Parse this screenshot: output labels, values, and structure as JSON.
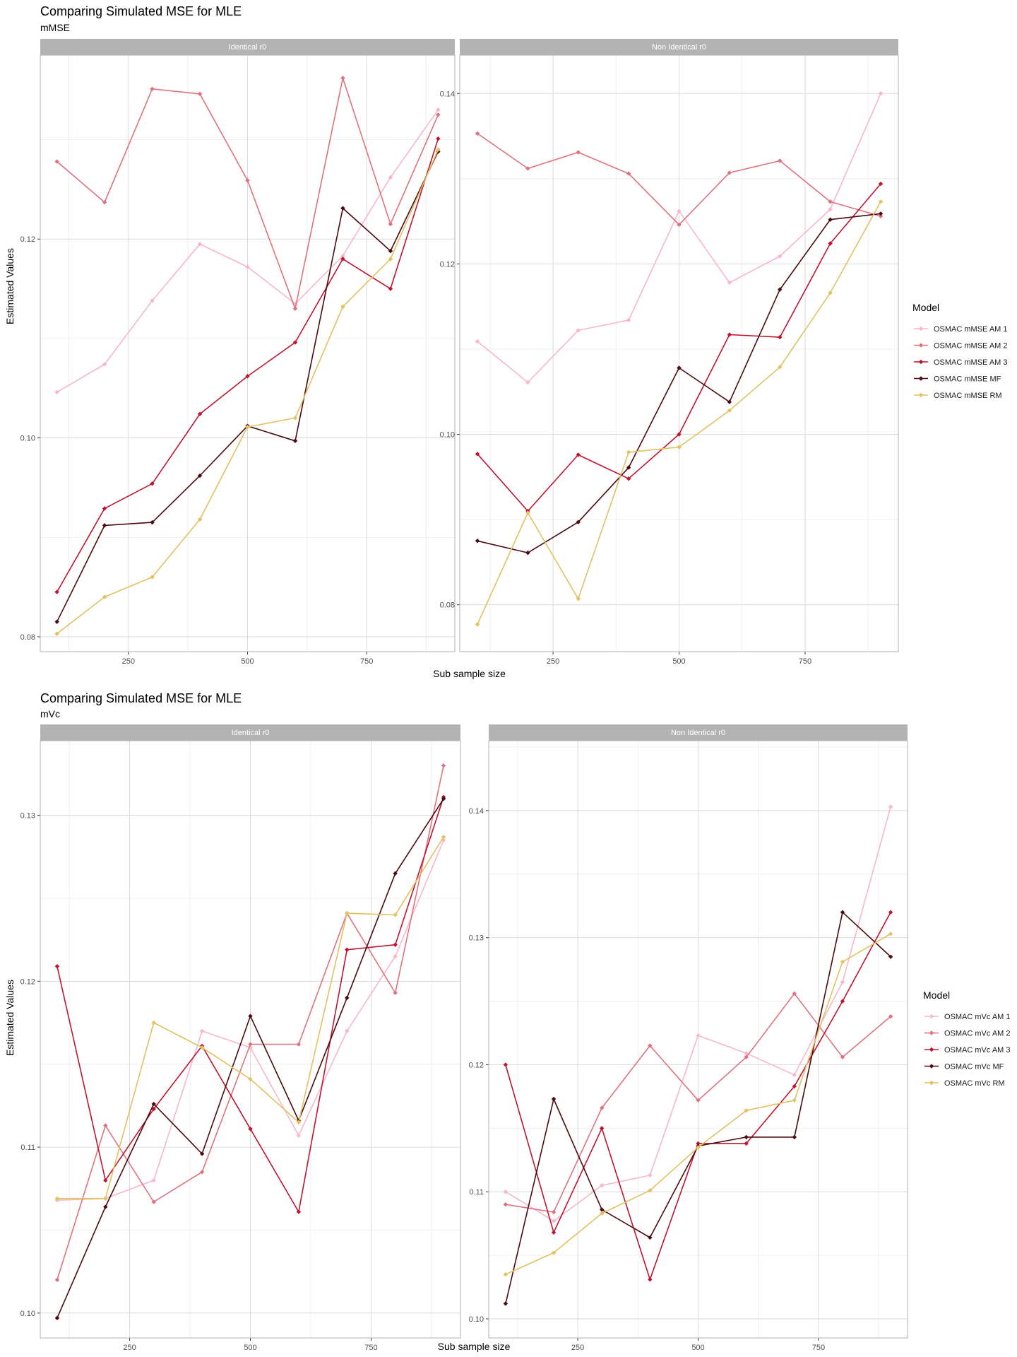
{
  "chart_data": [
    {
      "type": "line",
      "title": "Comparing Simulated MSE for MLE",
      "subtitle": "mMSE",
      "xlabel": "Sub sample size",
      "ylabel": "Estimated Values",
      "x": [
        100,
        200,
        300,
        400,
        500,
        600,
        700,
        800,
        900
      ],
      "xticks": [
        "250",
        "500",
        "750"
      ],
      "grid": true,
      "legend": {
        "title": "Model",
        "position": "right"
      },
      "panels": [
        {
          "label": "Identical r0",
          "ylim": [
            0.0785,
            0.1385
          ],
          "yticks": [
            "0.08",
            "0.10",
            "0.12"
          ],
          "series": [
            {
              "name": "OSMAC mMSE AM 1",
              "color": "#F9B6CB",
              "values": [
                0.1046,
                0.1074,
                0.1138,
                0.1195,
                0.1172,
                0.1135,
                0.1183,
                0.1262,
                0.133
              ]
            },
            {
              "name": "OSMAC mMSE AM 2",
              "color": "#E0717E",
              "values": [
                0.1278,
                0.1237,
                0.1351,
                0.1346,
                0.1259,
                0.113,
                0.1362,
                0.1215,
                0.1325
              ]
            },
            {
              "name": "OSMAC mMSE AM 3",
              "color": "#C0142E",
              "values": [
                0.0845,
                0.0929,
                0.0954,
                0.1024,
                0.1062,
                0.1096,
                0.118,
                0.115,
                0.1301
              ]
            },
            {
              "name": "OSMAC mMSE MF",
              "color": "#4B0A10",
              "values": [
                0.0815,
                0.0912,
                0.0915,
                0.0962,
                0.1012,
                0.0997,
                0.1231,
                0.1188,
                0.1288
              ]
            },
            {
              "name": "OSMAC mMSE RM",
              "color": "#E1C162",
              "values": [
                0.0803,
                0.084,
                0.086,
                0.0918,
                0.1011,
                0.102,
                0.1132,
                0.118,
                0.129
              ]
            }
          ]
        },
        {
          "label": "Non Identical r0",
          "ylim": [
            0.0745,
            0.1445
          ],
          "yticks": [
            "0.08",
            "0.10",
            "0.12",
            "0.14"
          ],
          "series": [
            {
              "name": "OSMAC mMSE AM 1",
              "color": "#F9B6CB",
              "values": [
                0.1109,
                0.1061,
                0.1122,
                0.1134,
                0.1262,
                0.1178,
                0.1209,
                0.1264,
                0.14
              ]
            },
            {
              "name": "OSMAC mMSE AM 2",
              "color": "#E0717E",
              "values": [
                0.1353,
                0.1312,
                0.1331,
                0.1306,
                0.1246,
                0.1307,
                0.1321,
                0.1273,
                0.1256
              ]
            },
            {
              "name": "OSMAC mMSE AM 3",
              "color": "#C0142E",
              "values": [
                0.0977,
                0.091,
                0.0976,
                0.0948,
                0.1,
                0.1117,
                0.1114,
                0.1224,
                0.1294
              ]
            },
            {
              "name": "OSMAC mMSE MF",
              "color": "#4B0A10",
              "values": [
                0.0875,
                0.0861,
                0.0897,
                0.0961,
                0.1078,
                0.1038,
                0.117,
                0.1252,
                0.1259
              ]
            },
            {
              "name": "OSMAC mMSE RM",
              "color": "#E1C162",
              "values": [
                0.0777,
                0.0908,
                0.0807,
                0.0979,
                0.0985,
                0.1028,
                0.1079,
                0.1166,
                0.1273
              ]
            }
          ]
        }
      ]
    },
    {
      "type": "line",
      "title": "Comparing Simulated MSE for MLE",
      "subtitle": "mVc",
      "xlabel": "Sub sample size",
      "ylabel": "Estimated Values",
      "x": [
        100,
        200,
        300,
        400,
        500,
        600,
        700,
        800,
        900
      ],
      "xticks": [
        "250",
        "500",
        "750"
      ],
      "grid": true,
      "legend": {
        "title": "Model",
        "position": "right"
      },
      "panels": [
        {
          "label": "Identical r0",
          "ylim": [
            0.0985,
            0.1345
          ],
          "yticks": [
            "0.10",
            "0.11",
            "0.12",
            "0.13"
          ],
          "series": [
            {
              "name": "OSMAC mVc AM 1",
              "color": "#F9B6CB",
              "values": [
                0.1068,
                0.1069,
                0.108,
                0.117,
                0.116,
                0.1107,
                0.117,
                0.1215,
                0.1285
              ]
            },
            {
              "name": "OSMAC mVc AM 2",
              "color": "#E0717E",
              "values": [
                0.102,
                0.1113,
                0.1067,
                0.1085,
                0.1162,
                0.1162,
                0.1241,
                0.1193,
                0.133
              ]
            },
            {
              "name": "OSMAC mVc AM 3",
              "color": "#C0142E",
              "values": [
                0.1209,
                0.108,
                0.1123,
                0.1161,
                0.1111,
                0.1061,
                0.1219,
                0.1222,
                0.1311
              ]
            },
            {
              "name": "OSMAC mVc MF",
              "color": "#4B0A10",
              "values": [
                0.0997,
                0.1064,
                0.1126,
                0.1096,
                0.1179,
                0.1116,
                0.119,
                0.1265,
                0.131
              ]
            },
            {
              "name": "OSMAC mVc RM",
              "color": "#E1C162",
              "values": [
                0.1069,
                0.1069,
                0.1175,
                0.116,
                0.1141,
                0.1115,
                0.1241,
                0.124,
                0.1287
              ]
            }
          ]
        },
        {
          "label": "Non Identical r0",
          "ylim": [
            0.0985,
            0.1455
          ],
          "yticks": [
            "0.10",
            "0.11",
            "0.12",
            "0.13",
            "0.14"
          ],
          "series": [
            {
              "name": "OSMAC mVc AM 1",
              "color": "#F9B6CB",
              "values": [
                0.11,
                0.1077,
                0.1105,
                0.1113,
                0.1223,
                0.1209,
                0.1192,
                0.1265,
                0.1403
              ]
            },
            {
              "name": "OSMAC mVc AM 2",
              "color": "#E0717E",
              "values": [
                0.109,
                0.1084,
                0.1166,
                0.1215,
                0.1172,
                0.1206,
                0.1256,
                0.1206,
                0.1238
              ]
            },
            {
              "name": "OSMAC mVc AM 3",
              "color": "#C0142E",
              "values": [
                0.12,
                0.1068,
                0.115,
                0.1031,
                0.1138,
                0.1138,
                0.1183,
                0.125,
                0.132
              ]
            },
            {
              "name": "OSMAC mVc MF",
              "color": "#4B0A10",
              "values": [
                0.1012,
                0.1173,
                0.1086,
                0.1064,
                0.1136,
                0.1143,
                0.1143,
                0.132,
                0.1285
              ]
            },
            {
              "name": "OSMAC mVc RM",
              "color": "#E1C162",
              "values": [
                0.1035,
                0.1052,
                0.1083,
                0.1101,
                0.1135,
                0.1164,
                0.1172,
                0.1281,
                0.1303
              ]
            }
          ]
        }
      ]
    }
  ]
}
